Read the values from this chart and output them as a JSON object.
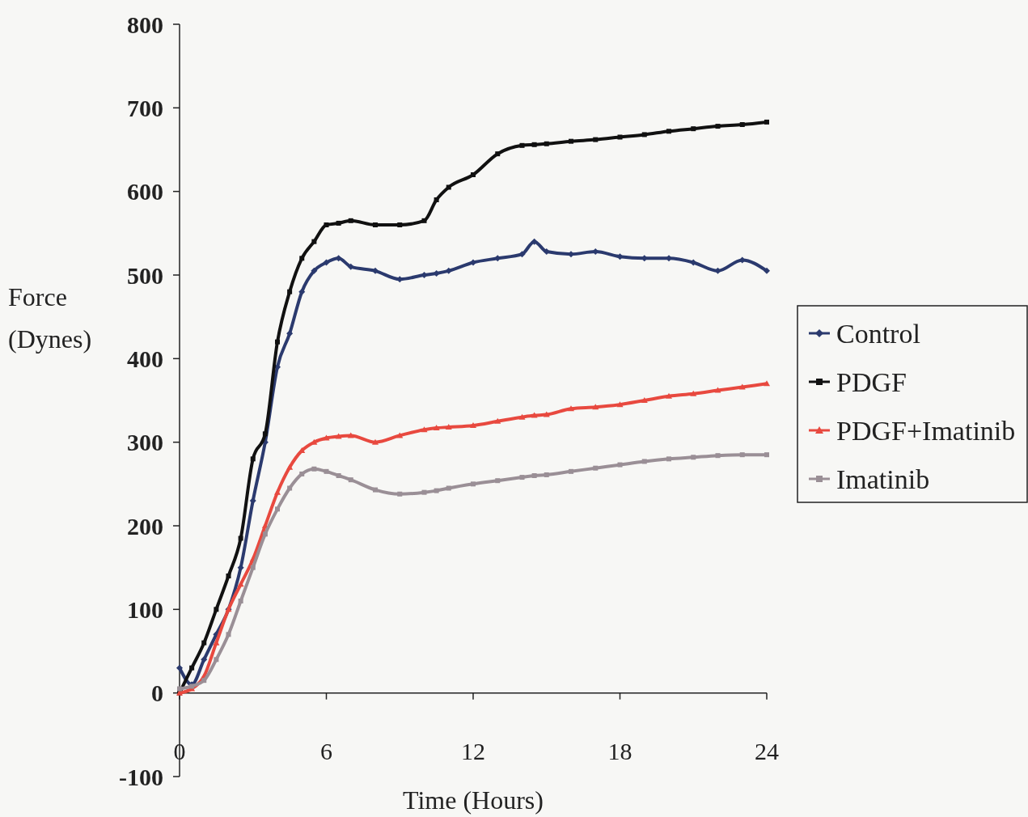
{
  "chart_data": {
    "type": "line",
    "xlabel": "Time (Hours)",
    "ylabel": "Force (Dynes)",
    "xlim": [
      0,
      24
    ],
    "xticks": [
      0,
      6,
      12,
      18,
      24
    ],
    "ylim": [
      -100,
      800
    ],
    "yticks": [
      -100,
      0,
      100,
      200,
      300,
      400,
      500,
      600,
      700,
      800
    ],
    "grid": false,
    "legend": "right",
    "x": [
      0,
      0.5,
      1,
      1.5,
      2,
      2.5,
      3,
      3.5,
      4,
      4.5,
      5,
      5.5,
      6,
      6.5,
      7,
      8,
      9,
      10,
      10.5,
      11,
      12,
      13,
      14,
      14.5,
      15,
      16,
      17,
      18,
      19,
      20,
      21,
      22,
      23,
      24
    ],
    "series": [
      {
        "name": "Control",
        "color": "#2b3a6e",
        "marker": "diamond",
        "values": [
          30,
          10,
          40,
          70,
          100,
          150,
          230,
          300,
          390,
          430,
          480,
          505,
          515,
          520,
          510,
          505,
          495,
          500,
          502,
          505,
          515,
          520,
          525,
          540,
          528,
          525,
          528,
          522,
          520,
          520,
          515,
          505,
          518,
          505
        ]
      },
      {
        "name": "PDGF",
        "color": "#111111",
        "marker": "square",
        "values": [
          0,
          30,
          60,
          100,
          140,
          185,
          280,
          310,
          420,
          480,
          520,
          540,
          560,
          562,
          565,
          560,
          560,
          565,
          590,
          605,
          620,
          645,
          655,
          656,
          657,
          660,
          662,
          665,
          668,
          672,
          675,
          678,
          680,
          683
        ]
      },
      {
        "name": "PDGF+Imatinib",
        "color": "#e8493f",
        "marker": "triangle",
        "values": [
          0,
          5,
          20,
          60,
          100,
          130,
          160,
          200,
          240,
          270,
          290,
          300,
          305,
          307,
          308,
          300,
          308,
          315,
          317,
          318,
          320,
          325,
          330,
          332,
          333,
          340,
          342,
          345,
          350,
          355,
          358,
          362,
          366,
          370
        ]
      },
      {
        "name": "Imatinib",
        "color": "#9a8f96",
        "marker": "square",
        "values": [
          5,
          8,
          15,
          40,
          70,
          110,
          150,
          190,
          220,
          245,
          262,
          268,
          265,
          260,
          255,
          243,
          238,
          240,
          242,
          245,
          250,
          254,
          258,
          260,
          261,
          265,
          269,
          273,
          277,
          280,
          282,
          284,
          285,
          285
        ]
      }
    ]
  }
}
